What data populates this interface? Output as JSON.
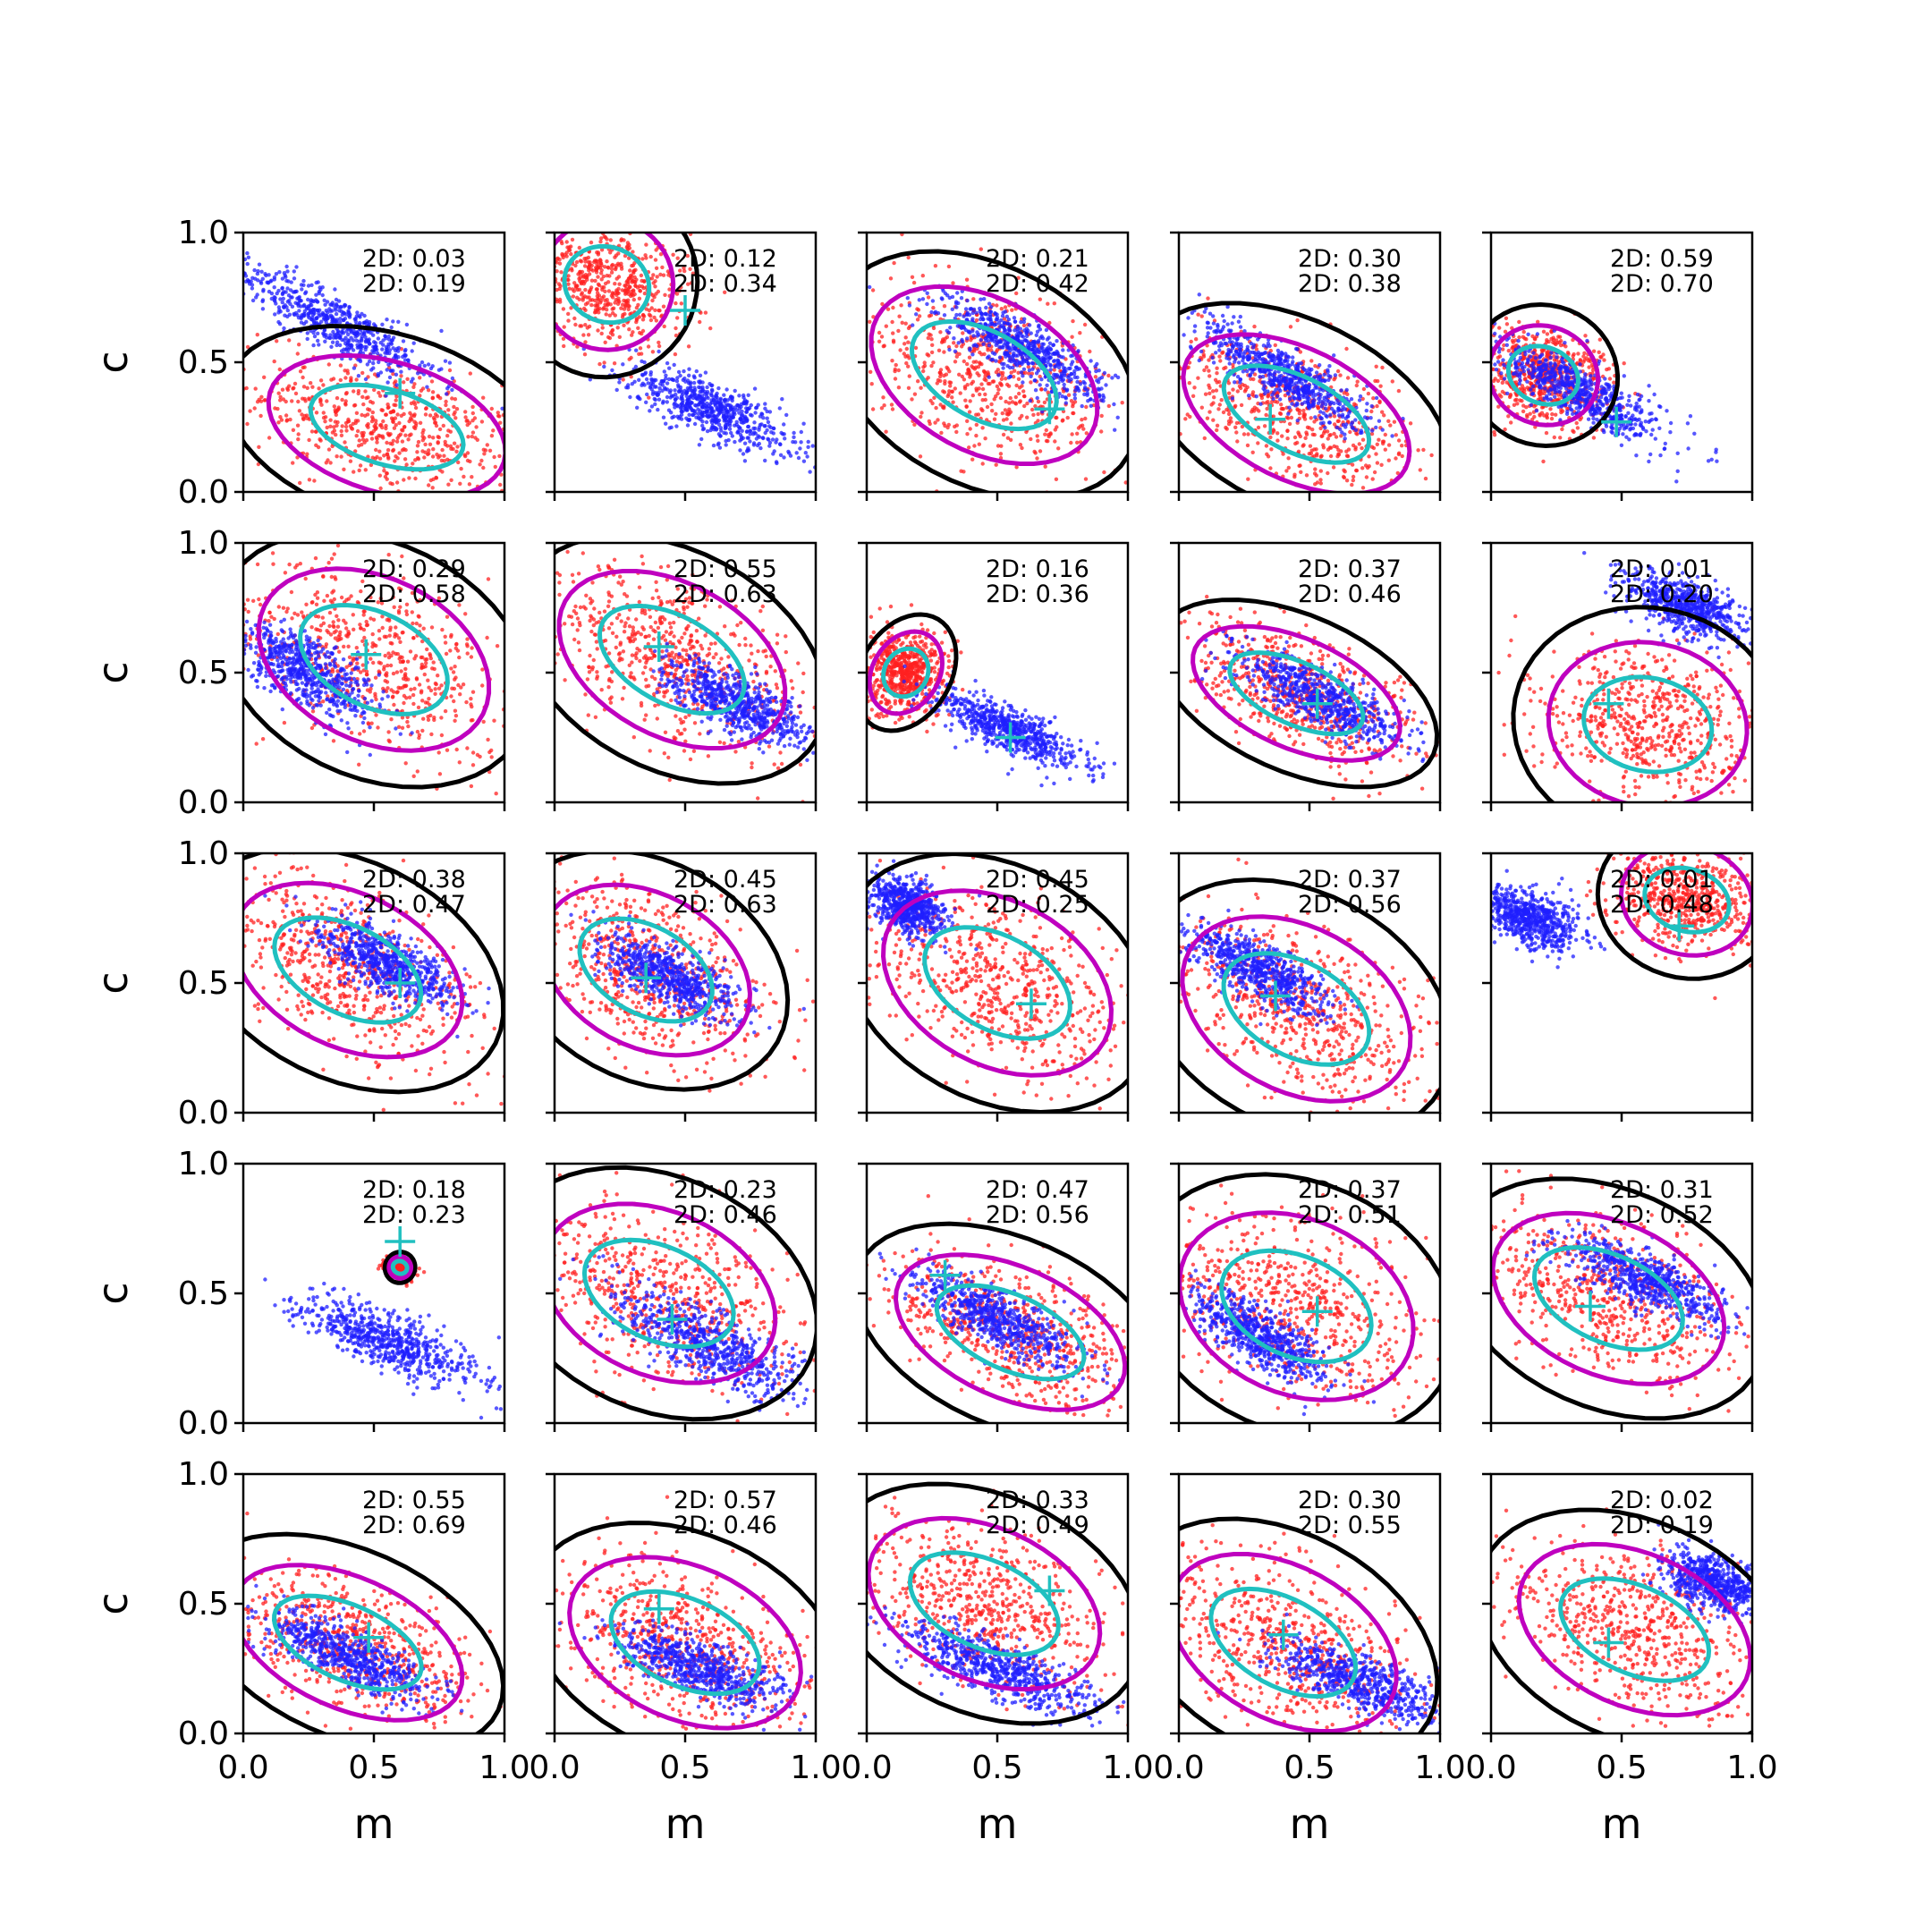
{
  "chart_data": {
    "type": "scatter",
    "grid_rows": 5,
    "grid_cols": 5,
    "xlabel": "m",
    "ylabel": "c",
    "xlim": [
      0,
      1
    ],
    "ylim": [
      0,
      1
    ],
    "xticks": [
      "0.0",
      "0.5",
      "1.0"
    ],
    "yticks": [
      "0.0",
      "0.5",
      "1.0"
    ],
    "colors": {
      "scatter_a": "#1f1fff",
      "scatter_b": "#ff2020",
      "contour_outer": "#000000",
      "contour_mid": "#bf00bf",
      "contour_inner": "#20c0c0",
      "truth_marker": "#20c0c0"
    },
    "panels": [
      {
        "row": 0,
        "col": 0,
        "annot": [
          "2D: 0.03",
          "2D: 0.19"
        ],
        "truth": [
          0.6,
          0.38
        ],
        "blue": {
          "center": [
            0.35,
            0.65
          ],
          "slope": -0.55,
          "spread_along": 0.45,
          "spread_across": 0.05
        },
        "red": {
          "center": [
            0.55,
            0.25
          ],
          "slope": -0.3,
          "spread_along": 0.55,
          "spread_across": 0.12
        }
      },
      {
        "row": 0,
        "col": 1,
        "annot": [
          "2D: 0.12",
          "2D: 0.34"
        ],
        "truth": [
          0.5,
          0.7
        ],
        "blue": {
          "center": [
            0.6,
            0.32
          ],
          "slope": -0.45,
          "spread_along": 0.35,
          "spread_across": 0.05
        },
        "red": {
          "center": [
            0.2,
            0.8
          ],
          "slope": -0.4,
          "spread_along": 0.3,
          "spread_across": 0.12
        }
      },
      {
        "row": 0,
        "col": 2,
        "annot": [
          "2D: 0.21",
          "2D: 0.42"
        ],
        "truth": [
          0.7,
          0.32
        ],
        "blue": {
          "center": [
            0.6,
            0.55
          ],
          "slope": -0.55,
          "spread_along": 0.35,
          "spread_across": 0.05
        },
        "red": {
          "center": [
            0.45,
            0.45
          ],
          "slope": -0.55,
          "spread_along": 0.55,
          "spread_across": 0.14
        }
      },
      {
        "row": 0,
        "col": 3,
        "annot": [
          "2D: 0.30",
          "2D: 0.38"
        ],
        "truth": [
          0.35,
          0.28
        ],
        "blue": {
          "center": [
            0.4,
            0.45
          ],
          "slope": -0.6,
          "spread_along": 0.35,
          "spread_across": 0.05
        },
        "red": {
          "center": [
            0.45,
            0.3
          ],
          "slope": -0.5,
          "spread_along": 0.55,
          "spread_across": 0.12
        }
      },
      {
        "row": 0,
        "col": 4,
        "annot": [
          "2D: 0.59",
          "2D: 0.70"
        ],
        "truth": [
          0.48,
          0.27
        ],
        "blue": {
          "center": [
            0.35,
            0.38
          ],
          "slope": -0.5,
          "spread_along": 0.35,
          "spread_across": 0.05
        },
        "red": {
          "center": [
            0.2,
            0.45
          ],
          "slope": -0.4,
          "spread_along": 0.25,
          "spread_across": 0.09
        }
      },
      {
        "row": 1,
        "col": 0,
        "annot": [
          "2D: 0.29",
          "2D: 0.58"
        ],
        "truth": [
          0.47,
          0.57
        ],
        "blue": {
          "center": [
            0.25,
            0.5
          ],
          "slope": -0.6,
          "spread_along": 0.3,
          "spread_across": 0.06
        },
        "red": {
          "center": [
            0.5,
            0.55
          ],
          "slope": -0.5,
          "spread_along": 0.55,
          "spread_across": 0.15
        }
      },
      {
        "row": 1,
        "col": 1,
        "annot": [
          "2D: 0.55",
          "2D: 0.63"
        ],
        "truth": [
          0.4,
          0.6
        ],
        "blue": {
          "center": [
            0.7,
            0.38
          ],
          "slope": -0.5,
          "spread_along": 0.3,
          "spread_across": 0.05
        },
        "red": {
          "center": [
            0.45,
            0.55
          ],
          "slope": -0.55,
          "spread_along": 0.55,
          "spread_across": 0.14
        }
      },
      {
        "row": 1,
        "col": 2,
        "annot": [
          "2D: 0.16",
          "2D: 0.36"
        ],
        "truth": [
          0.55,
          0.25
        ],
        "blue": {
          "center": [
            0.55,
            0.28
          ],
          "slope": -0.45,
          "spread_along": 0.3,
          "spread_across": 0.04
        },
        "red": {
          "center": [
            0.15,
            0.5
          ],
          "slope": -0.6,
          "spread_along": 0.15,
          "spread_across": 0.08
        }
      },
      {
        "row": 1,
        "col": 3,
        "annot": [
          "2D: 0.37",
          "2D: 0.46"
        ],
        "truth": [
          0.53,
          0.38
        ],
        "blue": {
          "center": [
            0.55,
            0.4
          ],
          "slope": -0.5,
          "spread_along": 0.35,
          "spread_across": 0.05
        },
        "red": {
          "center": [
            0.45,
            0.42
          ],
          "slope": -0.45,
          "spread_along": 0.5,
          "spread_across": 0.1
        }
      },
      {
        "row": 1,
        "col": 4,
        "annot": [
          "2D: 0.01",
          "2D: 0.20"
        ],
        "truth": [
          0.45,
          0.38
        ],
        "blue": {
          "center": [
            0.75,
            0.75
          ],
          "slope": -0.4,
          "spread_along": 0.25,
          "spread_across": 0.05
        },
        "red": {
          "center": [
            0.6,
            0.3
          ],
          "slope": -0.2,
          "spread_along": 0.45,
          "spread_across": 0.15
        }
      },
      {
        "row": 2,
        "col": 0,
        "annot": [
          "2D: 0.38",
          "2D: 0.47"
        ],
        "truth": [
          0.6,
          0.5
        ],
        "blue": {
          "center": [
            0.55,
            0.58
          ],
          "slope": -0.5,
          "spread_along": 0.3,
          "spread_across": 0.05
        },
        "red": {
          "center": [
            0.4,
            0.55
          ],
          "slope": -0.5,
          "spread_along": 0.55,
          "spread_across": 0.14
        }
      },
      {
        "row": 2,
        "col": 1,
        "annot": [
          "2D: 0.45",
          "2D: 0.63"
        ],
        "truth": [
          0.35,
          0.52
        ],
        "blue": {
          "center": [
            0.45,
            0.52
          ],
          "slope": -0.5,
          "spread_along": 0.3,
          "spread_across": 0.05
        },
        "red": {
          "center": [
            0.35,
            0.55
          ],
          "slope": -0.55,
          "spread_along": 0.5,
          "spread_across": 0.14
        }
      },
      {
        "row": 2,
        "col": 2,
        "annot": [
          "2D: 0.45",
          "2D: 0.25"
        ],
        "truth": [
          0.63,
          0.42
        ],
        "blue": {
          "center": [
            0.15,
            0.8
          ],
          "slope": -0.5,
          "spread_along": 0.15,
          "spread_across": 0.05
        },
        "red": {
          "center": [
            0.5,
            0.5
          ],
          "slope": -0.55,
          "spread_along": 0.55,
          "spread_across": 0.15
        }
      },
      {
        "row": 2,
        "col": 3,
        "annot": [
          "2D: 0.37",
          "2D: 0.56"
        ],
        "truth": [
          0.37,
          0.45
        ],
        "blue": {
          "center": [
            0.3,
            0.55
          ],
          "slope": -0.55,
          "spread_along": 0.3,
          "spread_across": 0.05
        },
        "red": {
          "center": [
            0.45,
            0.4
          ],
          "slope": -0.55,
          "spread_along": 0.55,
          "spread_across": 0.15
        }
      },
      {
        "row": 2,
        "col": 4,
        "annot": [
          "2D: 0.01",
          "2D: 0.48"
        ],
        "truth": [
          0.72,
          0.72
        ],
        "blue": {
          "center": [
            0.15,
            0.75
          ],
          "slope": -0.4,
          "spread_along": 0.2,
          "spread_across": 0.05
        },
        "red": {
          "center": [
            0.75,
            0.82
          ],
          "slope": -0.3,
          "spread_along": 0.3,
          "spread_across": 0.1
        }
      },
      {
        "row": 3,
        "col": 0,
        "annot": [
          "2D: 0.18",
          "2D: 0.23"
        ],
        "truth": [
          0.6,
          0.7
        ],
        "blue": {
          "center": [
            0.55,
            0.32
          ],
          "slope": -0.4,
          "spread_along": 0.4,
          "spread_across": 0.05
        },
        "red": {
          "center": [
            0.6,
            0.6
          ],
          "slope": -0.4,
          "spread_along": 0.05,
          "spread_across": 0.02
        }
      },
      {
        "row": 3,
        "col": 1,
        "annot": [
          "2D: 0.23",
          "2D: 0.46"
        ],
        "truth": [
          0.45,
          0.4
        ],
        "blue": {
          "center": [
            0.6,
            0.3
          ],
          "slope": -0.5,
          "spread_along": 0.4,
          "spread_across": 0.06
        },
        "red": {
          "center": [
            0.4,
            0.5
          ],
          "slope": -0.45,
          "spread_along": 0.55,
          "spread_across": 0.15
        }
      },
      {
        "row": 3,
        "col": 2,
        "annot": [
          "2D: 0.47",
          "2D: 0.56"
        ],
        "truth": [
          0.3,
          0.57
        ],
        "blue": {
          "center": [
            0.5,
            0.4
          ],
          "slope": -0.5,
          "spread_along": 0.35,
          "spread_across": 0.05
        },
        "red": {
          "center": [
            0.55,
            0.35
          ],
          "slope": -0.45,
          "spread_along": 0.55,
          "spread_across": 0.12
        }
      },
      {
        "row": 3,
        "col": 3,
        "annot": [
          "2D: 0.37",
          "2D: 0.51"
        ],
        "truth": [
          0.53,
          0.43
        ],
        "blue": {
          "center": [
            0.3,
            0.33
          ],
          "slope": -0.6,
          "spread_along": 0.3,
          "spread_across": 0.05
        },
        "red": {
          "center": [
            0.45,
            0.45
          ],
          "slope": -0.45,
          "spread_along": 0.55,
          "spread_across": 0.16
        }
      },
      {
        "row": 3,
        "col": 4,
        "annot": [
          "2D: 0.31",
          "2D: 0.52"
        ],
        "truth": [
          0.38,
          0.45
        ],
        "blue": {
          "center": [
            0.6,
            0.55
          ],
          "slope": -0.45,
          "spread_along": 0.35,
          "spread_across": 0.05
        },
        "red": {
          "center": [
            0.45,
            0.48
          ],
          "slope": -0.45,
          "spread_along": 0.55,
          "spread_across": 0.14
        }
      },
      {
        "row": 4,
        "col": 0,
        "annot": [
          "2D: 0.55",
          "2D: 0.69"
        ],
        "truth": [
          0.48,
          0.37
        ],
        "blue": {
          "center": [
            0.4,
            0.3
          ],
          "slope": -0.45,
          "spread_along": 0.35,
          "spread_across": 0.05
        },
        "red": {
          "center": [
            0.4,
            0.35
          ],
          "slope": -0.45,
          "spread_along": 0.55,
          "spread_across": 0.12
        }
      },
      {
        "row": 4,
        "col": 1,
        "annot": [
          "2D: 0.57",
          "2D: 0.46"
        ],
        "truth": [
          0.4,
          0.48
        ],
        "blue": {
          "center": [
            0.55,
            0.25
          ],
          "slope": -0.4,
          "spread_along": 0.35,
          "spread_across": 0.05
        },
        "red": {
          "center": [
            0.5,
            0.35
          ],
          "slope": -0.45,
          "spread_along": 0.55,
          "spread_across": 0.14
        }
      },
      {
        "row": 4,
        "col": 2,
        "annot": [
          "2D: 0.33",
          "2D: 0.49"
        ],
        "truth": [
          0.7,
          0.55
        ],
        "blue": {
          "center": [
            0.5,
            0.25
          ],
          "slope": -0.4,
          "spread_along": 0.4,
          "spread_across": 0.05
        },
        "red": {
          "center": [
            0.45,
            0.5
          ],
          "slope": -0.45,
          "spread_along": 0.55,
          "spread_across": 0.14
        }
      },
      {
        "row": 4,
        "col": 3,
        "annot": [
          "2D: 0.30",
          "2D: 0.55"
        ],
        "truth": [
          0.4,
          0.38
        ],
        "blue": {
          "center": [
            0.7,
            0.2
          ],
          "slope": -0.4,
          "spread_along": 0.35,
          "spread_across": 0.05
        },
        "red": {
          "center": [
            0.4,
            0.35
          ],
          "slope": -0.55,
          "spread_along": 0.55,
          "spread_across": 0.14
        }
      },
      {
        "row": 4,
        "col": 4,
        "annot": [
          "2D: 0.02",
          "2D: 0.19"
        ],
        "truth": [
          0.45,
          0.35
        ],
        "blue": {
          "center": [
            0.85,
            0.58
          ],
          "slope": -0.35,
          "spread_along": 0.2,
          "spread_across": 0.05
        },
        "red": {
          "center": [
            0.55,
            0.4
          ],
          "slope": -0.45,
          "spread_along": 0.55,
          "spread_across": 0.14
        }
      }
    ]
  }
}
